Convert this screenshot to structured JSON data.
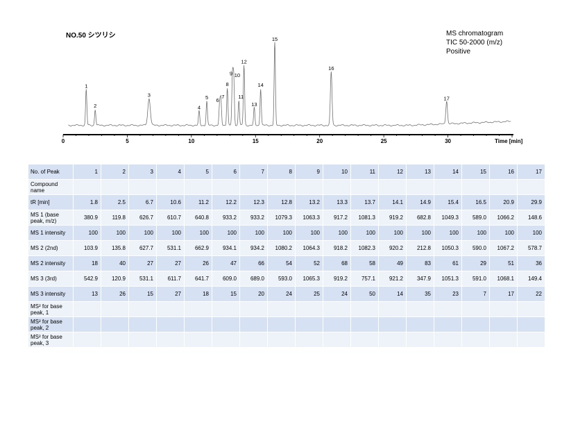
{
  "header": {
    "title": "NO.50 シツリシ",
    "meta_lines": [
      "MS chromatogram",
      "TIC 50-2000 (m/z)",
      "Positive"
    ]
  },
  "chart_data": {
    "type": "line",
    "title": "NO.50 シツリシ",
    "xlabel": "Time [min]",
    "ylabel": "",
    "xlim": [
      0,
      35
    ],
    "xticks": [
      0,
      5,
      10,
      15,
      20,
      25,
      30
    ],
    "grid": false,
    "peaks": [
      {
        "label": "1",
        "t": 1.8,
        "height": 0.43
      },
      {
        "label": "2",
        "t": 2.5,
        "height": 0.19
      },
      {
        "label": "3",
        "t": 6.7,
        "height": 0.32
      },
      {
        "label": "4",
        "t": 10.6,
        "height": 0.17
      },
      {
        "label": "5",
        "t": 11.2,
        "height": 0.29
      },
      {
        "label": "6",
        "t": 12.2,
        "height": 0.26
      },
      {
        "label": "7",
        "t": 12.3,
        "height": 0.3
      },
      {
        "label": "8",
        "t": 12.8,
        "height": 0.45
      },
      {
        "label": "9",
        "t": 13.2,
        "height": 0.58
      },
      {
        "label": "10",
        "t": 13.3,
        "height": 0.56
      },
      {
        "label": "11",
        "t": 13.7,
        "height": 0.3
      },
      {
        "label": "12",
        "t": 14.1,
        "height": 0.72
      },
      {
        "label": "13",
        "t": 14.9,
        "height": 0.21
      },
      {
        "label": "14",
        "t": 15.4,
        "height": 0.44
      },
      {
        "label": "15",
        "t": 16.5,
        "height": 0.99
      },
      {
        "label": "16",
        "t": 20.9,
        "height": 0.64
      },
      {
        "label": "17",
        "t": 29.9,
        "height": 0.28
      }
    ]
  },
  "table": {
    "rows": [
      {
        "label": "No. of Peak",
        "values": [
          "1",
          "2",
          "3",
          "4",
          "5",
          "6",
          "7",
          "8",
          "9",
          "10",
          "11",
          "12",
          "13",
          "14",
          "15",
          "16",
          "17"
        ]
      },
      {
        "label": "Compound name",
        "values": [
          "",
          "",
          "",
          "",
          "",
          "",
          "",
          "",
          "",
          "",
          "",
          "",
          "",
          "",
          "",
          "",
          ""
        ]
      },
      {
        "label": "tR [min]",
        "values": [
          "1.8",
          "2.5",
          "6.7",
          "10.6",
          "11.2",
          "12.2",
          "12.3",
          "12.8",
          "13.2",
          "13.3",
          "13.7",
          "14.1",
          "14.9",
          "15.4",
          "16.5",
          "20.9",
          "29.9"
        ]
      },
      {
        "label": "MS 1 (base peak, m/z)",
        "values": [
          "380.9",
          "119.8",
          "626.7",
          "610.7",
          "640.8",
          "933.2",
          "933.2",
          "1079.3",
          "1063.3",
          "917.2",
          "1081.3",
          "919.2",
          "682.8",
          "1049.3",
          "589.0",
          "1066.2",
          "148.6"
        ]
      },
      {
        "label": "MS 1 intensity",
        "values": [
          "100",
          "100",
          "100",
          "100",
          "100",
          "100",
          "100",
          "100",
          "100",
          "100",
          "100",
          "100",
          "100",
          "100",
          "100",
          "100",
          "100"
        ]
      },
      {
        "label": "MS 2 (2nd)",
        "values": [
          "103.9",
          "135.8",
          "627.7",
          "531.1",
          "662.9",
          "934.1",
          "934.2",
          "1080.2",
          "1064.3",
          "918.2",
          "1082.3",
          "920.2",
          "212.8",
          "1050.3",
          "590.0",
          "1067.2",
          "578.7"
        ]
      },
      {
        "label": "MS 2 intensity",
        "values": [
          "18",
          "40",
          "27",
          "27",
          "26",
          "47",
          "66",
          "54",
          "52",
          "68",
          "58",
          "49",
          "83",
          "61",
          "29",
          "51",
          "36"
        ]
      },
      {
        "label": "MS 3 (3rd)",
        "values": [
          "542.9",
          "120.9",
          "531.1",
          "611.7",
          "641.7",
          "609.0",
          "689.0",
          "593.0",
          "1065.3",
          "919.2",
          "757.1",
          "921.2",
          "347.9",
          "1051.3",
          "591.0",
          "1068.1",
          "149.4"
        ]
      },
      {
        "label": "MS 3 intensity",
        "values": [
          "13",
          "26",
          "15",
          "27",
          "18",
          "15",
          "20",
          "24",
          "25",
          "24",
          "50",
          "14",
          "35",
          "23",
          "7",
          "17",
          "22"
        ]
      },
      {
        "label": "MS² for base peak, 1",
        "values": [
          "",
          "",
          "",
          "",
          "",
          "",
          "",
          "",
          "",
          "",
          "",
          "",
          "",
          "",
          "",
          "",
          ""
        ]
      },
      {
        "label": "MS² for base peak, 2",
        "values": [
          "",
          "",
          "",
          "",
          "",
          "",
          "",
          "",
          "",
          "",
          "",
          "",
          "",
          "",
          "",
          "",
          ""
        ]
      },
      {
        "label": "MS² for base peak, 3",
        "values": [
          "",
          "",
          "",
          "",
          "",
          "",
          "",
          "",
          "",
          "",
          "",
          "",
          "",
          "",
          "",
          "",
          ""
        ]
      }
    ]
  }
}
